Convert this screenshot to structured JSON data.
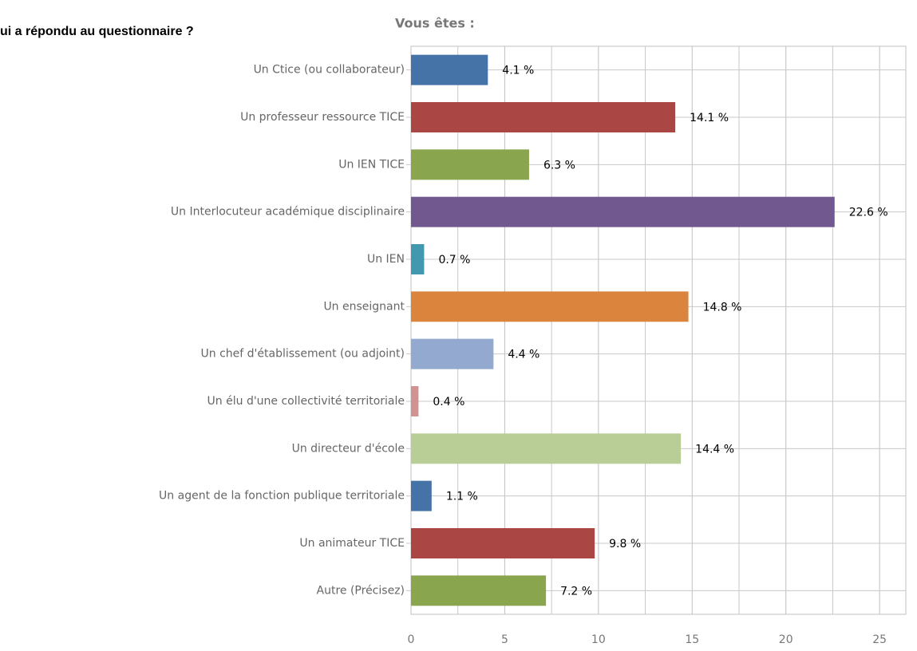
{
  "chart_data": {
    "type": "bar",
    "orientation": "horizontal",
    "heading": "ui a répondu au questionnaire ?",
    "title": "Vous êtes :",
    "categories": [
      "Un Ctice (ou collaborateur)",
      "Un professeur ressource TICE",
      "Un IEN TICE",
      "Un Interlocuteur académique disciplinaire",
      "Un IEN",
      "Un enseignant",
      "Un chef d'établissement (ou adjoint)",
      "Un élu d'une collectivité territoriale",
      "Un directeur d'école",
      "Un agent de la fonction publique territoriale",
      "Un animateur TICE",
      "Autre (Précisez)"
    ],
    "values": [
      4.1,
      14.1,
      6.3,
      22.6,
      0.7,
      14.8,
      4.4,
      0.4,
      14.4,
      1.1,
      9.8,
      7.2
    ],
    "value_labels": [
      "4.1 %",
      "14.1 %",
      "6.3 %",
      "22.6 %",
      "0.7 %",
      "14.8 %",
      "4.4 %",
      "0.4 %",
      "14.4 %",
      "1.1 %",
      "9.8 %",
      "7.2 %"
    ],
    "colors": [
      "#4572a7",
      "#aa4643",
      "#89a54e",
      "#71588f",
      "#4198af",
      "#db843d",
      "#93a9cf",
      "#d19392",
      "#b9cd96",
      "#4572a7",
      "#aa4643",
      "#89a54e"
    ],
    "xlim": [
      0,
      26.4
    ],
    "xticks": [
      0,
      5,
      10,
      15,
      20,
      25
    ],
    "minor_xticks": [
      2.5,
      7.5,
      12.5,
      17.5,
      22.5
    ],
    "grid": true
  }
}
